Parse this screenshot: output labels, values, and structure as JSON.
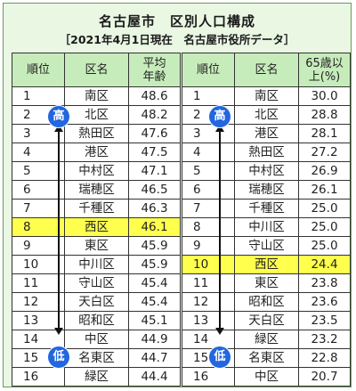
{
  "title": "名古屋市　区別人口構成",
  "subtitle": "［2021年4月1日現在　名古屋市役所データ］",
  "markers": {
    "high": "高",
    "low": "低"
  },
  "colors": {
    "header_bg": "#c7ecbb",
    "highlight": "#ffff4d",
    "marker": "#2266e0",
    "panel_bg": "#e9f7e3"
  },
  "average_age_table": {
    "headers": {
      "rank": "順位",
      "ward": "区名",
      "value_line1": "平均",
      "value_line2": "年齢"
    },
    "highlight_ward": "西区",
    "rows": [
      {
        "rank": "1",
        "ward": "南区",
        "value": "48.6"
      },
      {
        "rank": "2",
        "ward": "北区",
        "value": "48.2"
      },
      {
        "rank": "3",
        "ward": "熱田区",
        "value": "47.6"
      },
      {
        "rank": "4",
        "ward": "港区",
        "value": "47.5"
      },
      {
        "rank": "5",
        "ward": "中村区",
        "value": "47.1"
      },
      {
        "rank": "6",
        "ward": "瑞穂区",
        "value": "46.5"
      },
      {
        "rank": "7",
        "ward": "千種区",
        "value": "46.3"
      },
      {
        "rank": "8",
        "ward": "西区",
        "value": "46.1"
      },
      {
        "rank": "9",
        "ward": "東区",
        "value": "45.9"
      },
      {
        "rank": "10",
        "ward": "中川区",
        "value": "45.9"
      },
      {
        "rank": "11",
        "ward": "守山区",
        "value": "45.4"
      },
      {
        "rank": "12",
        "ward": "天白区",
        "value": "45.4"
      },
      {
        "rank": "13",
        "ward": "昭和区",
        "value": "45.1"
      },
      {
        "rank": "14",
        "ward": "中区",
        "value": "44.9"
      },
      {
        "rank": "15",
        "ward": "名東区",
        "value": "44.7"
      },
      {
        "rank": "16",
        "ward": "緑区",
        "value": "44.4"
      }
    ]
  },
  "over65_table": {
    "headers": {
      "rank": "順位",
      "ward": "区名",
      "value_line1": "65歳以",
      "value_line2": "上(%)"
    },
    "highlight_ward": "西区",
    "rows": [
      {
        "rank": "1",
        "ward": "南区",
        "value": "30.0"
      },
      {
        "rank": "2",
        "ward": "北区",
        "value": "28.8"
      },
      {
        "rank": "3",
        "ward": "港区",
        "value": "28.1"
      },
      {
        "rank": "4",
        "ward": "熱田区",
        "value": "27.2"
      },
      {
        "rank": "5",
        "ward": "中村区",
        "value": "26.9"
      },
      {
        "rank": "6",
        "ward": "瑞穂区",
        "value": "26.1"
      },
      {
        "rank": "7",
        "ward": "千種区",
        "value": "25.0"
      },
      {
        "rank": "8",
        "ward": "中川区",
        "value": "25.0"
      },
      {
        "rank": "9",
        "ward": "守山区",
        "value": "25.0"
      },
      {
        "rank": "10",
        "ward": "西区",
        "value": "24.4"
      },
      {
        "rank": "11",
        "ward": "東区",
        "value": "23.8"
      },
      {
        "rank": "12",
        "ward": "昭和区",
        "value": "23.6"
      },
      {
        "rank": "13",
        "ward": "天白区",
        "value": "23.5"
      },
      {
        "rank": "14",
        "ward": "緑区",
        "value": "23.2"
      },
      {
        "rank": "15",
        "ward": "名東区",
        "value": "22.8"
      },
      {
        "rank": "16",
        "ward": "中区",
        "value": "20.7"
      }
    ]
  }
}
